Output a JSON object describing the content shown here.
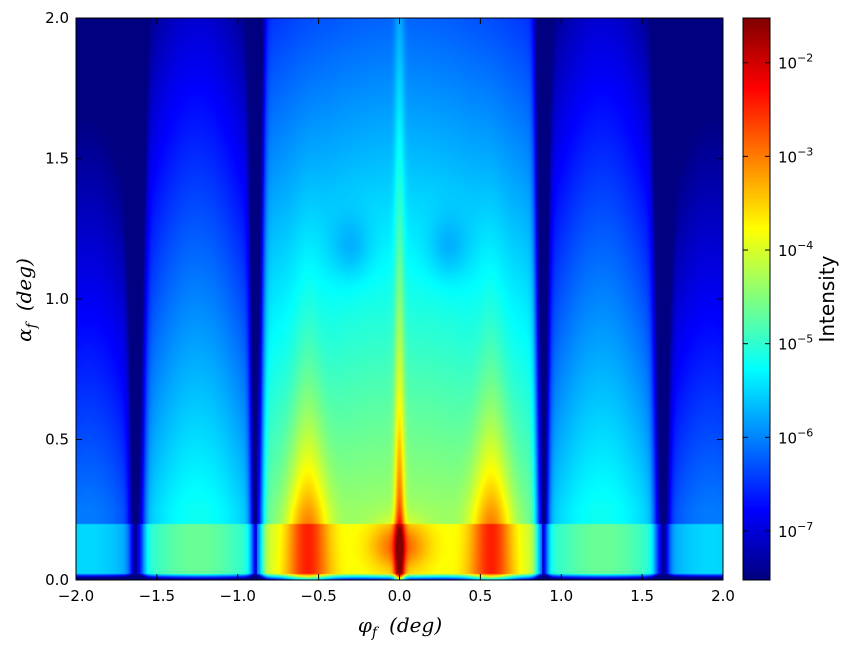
{
  "chart_data": {
    "type": "heatmap",
    "title": "",
    "xlabel": "φ_f  (deg)",
    "xlabel_parts": {
      "symbol": "φ",
      "sub": "f",
      "unit": "(deg)"
    },
    "ylabel": "α_f  (deg)",
    "ylabel_parts": {
      "symbol": "α",
      "sub": "f",
      "unit": "(deg)"
    },
    "xlim": [
      -2.0,
      2.0
    ],
    "ylim": [
      0.0,
      2.0
    ],
    "xticks": [
      "−2.0",
      "−1.5",
      "−1.0",
      "−0.5",
      "0.0",
      "0.5",
      "1.0",
      "1.5",
      "2.0"
    ],
    "xtick_values": [
      -2.0,
      -1.5,
      -1.0,
      -0.5,
      0.0,
      0.5,
      1.0,
      1.5,
      2.0
    ],
    "yticks": [
      "0.0",
      "0.5",
      "1.0",
      "1.5",
      "2.0"
    ],
    "ytick_values": [
      0.0,
      0.5,
      1.0,
      1.5,
      2.0
    ],
    "colorbar": {
      "label": "Intensity",
      "scale": "log",
      "range": [
        3e-08,
        0.03
      ],
      "colormap": "jet",
      "ticks": [
        {
          "value": 1e-07,
          "base": "10",
          "exp": "-7"
        },
        {
          "value": 1e-06,
          "base": "10",
          "exp": "-6"
        },
        {
          "value": 1e-05,
          "base": "10",
          "exp": "-5"
        },
        {
          "value": 0.0001,
          "base": "10",
          "exp": "-4"
        },
        {
          "value": 0.001,
          "base": "10",
          "exp": "-3"
        },
        {
          "value": 0.01,
          "base": "10",
          "exp": "-2"
        }
      ]
    },
    "features": {
      "minima_phi": [
        0.88,
        1.62
      ],
      "specular_peak_alpha": 0.15,
      "yoneda_alpha": 0.2,
      "peaks_phi": [
        0.0,
        0.57
      ]
    },
    "grid": false,
    "legend": "none"
  }
}
